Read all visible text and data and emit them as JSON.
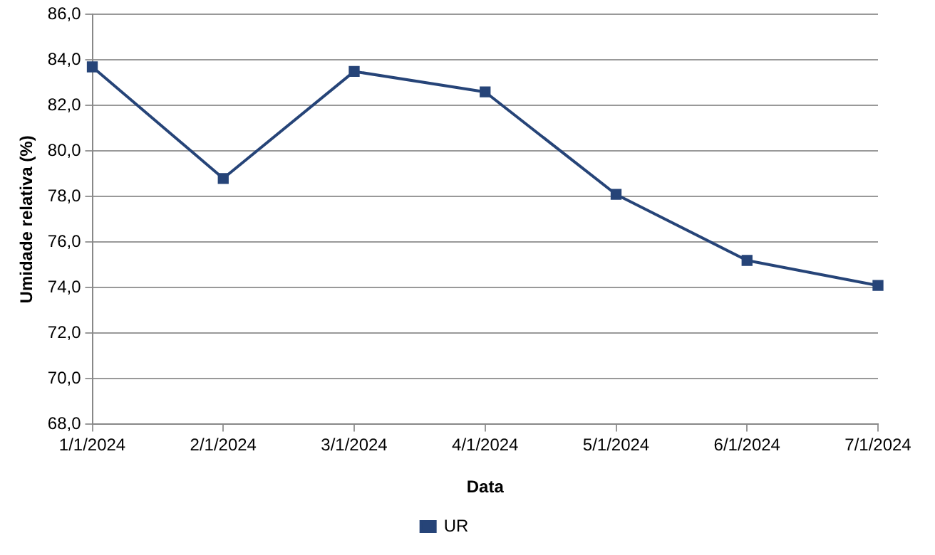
{
  "chart_data": {
    "type": "line",
    "xlabel": "Data",
    "ylabel": "Umidade relativa (%)",
    "categories": [
      "1/1/2024",
      "2/1/2024",
      "3/1/2024",
      "4/1/2024",
      "5/1/2024",
      "6/1/2024",
      "7/1/2024"
    ],
    "series": [
      {
        "name": "UR",
        "color": "#264478",
        "values": [
          83.7,
          78.8,
          83.5,
          82.6,
          78.1,
          75.2,
          74.1
        ]
      }
    ],
    "ylim": [
      68,
      86
    ],
    "yticks": [
      {
        "value": 68,
        "label": "68,0"
      },
      {
        "value": 70,
        "label": "70,0"
      },
      {
        "value": 72,
        "label": "72,0"
      },
      {
        "value": 74,
        "label": "74,0"
      },
      {
        "value": 76,
        "label": "76,0"
      },
      {
        "value": 78,
        "label": "78,0"
      },
      {
        "value": 80,
        "label": "80,0"
      },
      {
        "value": 82,
        "label": "82,0"
      },
      {
        "value": 84,
        "label": "84,0"
      },
      {
        "value": 86,
        "label": "86,0"
      }
    ],
    "grid": "y",
    "legend": "bottom",
    "marker": "square",
    "line_style": "solid"
  }
}
